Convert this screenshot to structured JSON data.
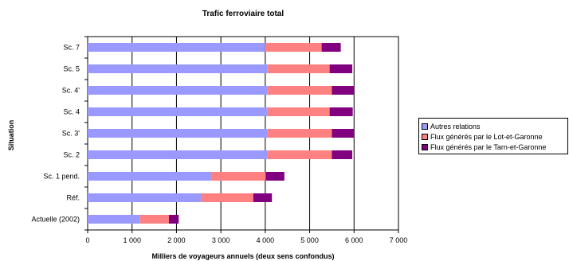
{
  "chart_data": {
    "type": "bar",
    "orientation": "horizontal",
    "stacked": true,
    "title": "Trafic ferroviaire total",
    "xlabel": "Milliers de voyageurs annuels (deux sens confondus)",
    "ylabel": "Situation",
    "xlim": [
      0,
      7000
    ],
    "xticks": [
      0,
      1000,
      2000,
      3000,
      4000,
      5000,
      6000,
      7000
    ],
    "xtick_labels": [
      "0",
      "1 000",
      "2 000",
      "3 000",
      "4 000",
      "5 000",
      "6 000",
      "7 000"
    ],
    "vertical_gridlines": true,
    "legend_position": "right",
    "categories": [
      "Sc. 7",
      "Sc. 5",
      "Sc. 4'",
      "Sc. 4",
      "Sc. 3'",
      "Sc. 2",
      "Sc. 1 pend.",
      "Réf.",
      "Actuelle (2002)"
    ],
    "series": [
      {
        "name": "Autres relations",
        "color": "#9999ff",
        "values": [
          4000,
          4050,
          4050,
          4050,
          4050,
          4050,
          2780,
          2550,
          1180
        ]
      },
      {
        "name": "Flux générés par le Lot-et-Garonne",
        "color": "#ff8080",
        "values": [
          1270,
          1400,
          1450,
          1400,
          1450,
          1450,
          1230,
          1180,
          650
        ]
      },
      {
        "name": "Flux générés par le Tarn-et-Garonne",
        "color": "#800080",
        "values": [
          430,
          510,
          500,
          520,
          500,
          460,
          420,
          420,
          220
        ]
      }
    ]
  }
}
